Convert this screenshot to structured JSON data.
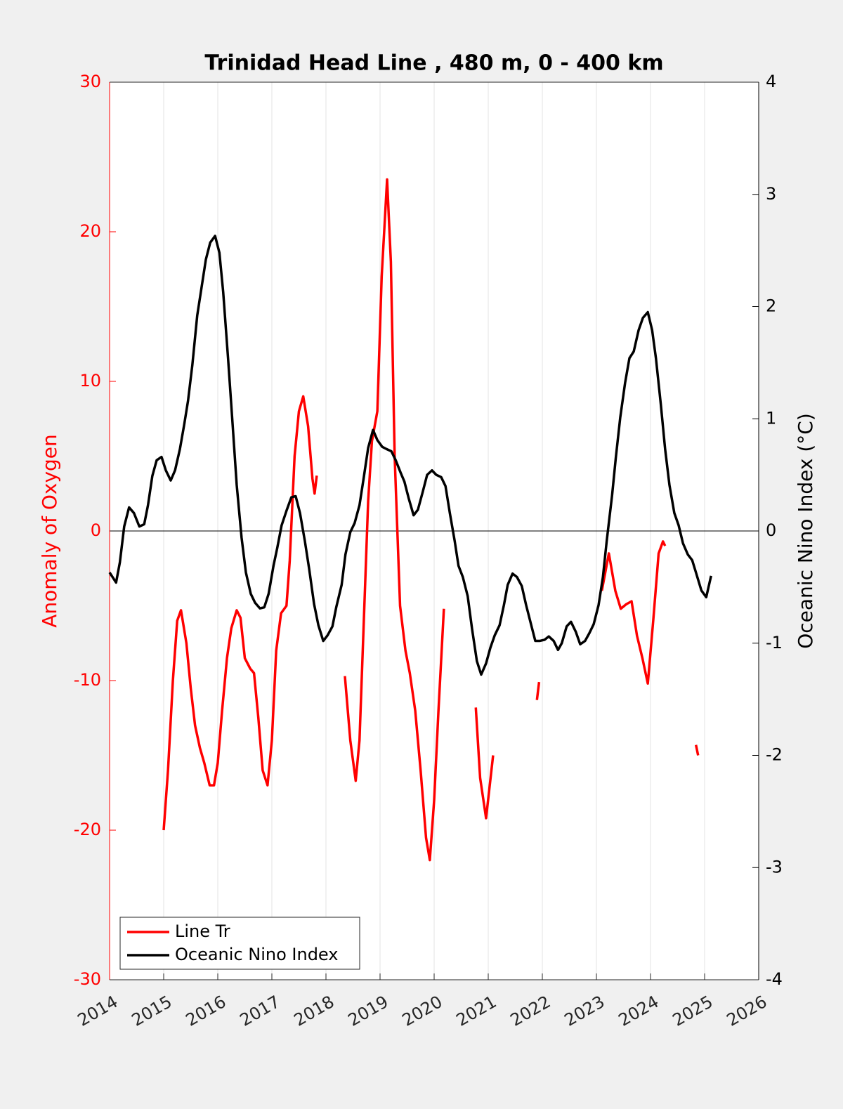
{
  "chart_data": {
    "type": "line",
    "title": "Trinidad Head Line , 480 m, 0 - 400 km",
    "ylabel": "Anomaly of Oxygen",
    "y2label": "Oceanic Nino Index (°C)",
    "xlim": [
      2014,
      2026
    ],
    "xticks": [
      2014,
      2015,
      2016,
      2017,
      2018,
      2019,
      2020,
      2021,
      2022,
      2023,
      2024,
      2025,
      2026
    ],
    "ylim": [
      -30,
      30
    ],
    "yticks": [
      -30,
      -20,
      -10,
      0,
      10,
      20,
      30
    ],
    "y2lim": [
      -4,
      4
    ],
    "y2ticks": [
      -4,
      -3,
      -2,
      -1,
      0,
      1,
      2,
      3,
      4
    ],
    "grid": "x",
    "hline": 0,
    "legend": "lower left",
    "series": [
      {
        "name": "Line Tr",
        "color": "#ff0000",
        "axis": "y",
        "x": [
          2015.0,
          2015.08,
          2015.17,
          2015.25,
          2015.32,
          2015.42,
          2015.5,
          2015.58,
          2015.67,
          2015.75,
          2015.85,
          2015.93,
          2016.0,
          2016.08,
          2016.17,
          2016.25,
          2016.35,
          2016.42,
          2016.5,
          2016.6,
          2016.67,
          2016.75,
          2016.83,
          2016.92,
          2017.0,
          2017.08,
          2017.17,
          2017.27,
          2017.33,
          2017.42,
          2017.5,
          2017.58,
          2017.67,
          2017.75,
          2017.79,
          2017.83,
          null,
          2018.35,
          2018.45,
          2018.55,
          2018.62,
          2018.7,
          2018.78,
          2018.85,
          2018.95,
          2019.03,
          2019.13,
          2019.2,
          2019.27,
          2019.37,
          2019.47,
          2019.55,
          2019.65,
          2019.75,
          2019.85,
          2019.92,
          2020.0,
          2020.08,
          2020.18,
          null,
          2020.77,
          2020.85,
          2020.96,
          2021.09,
          null,
          2021.9,
          2021.94,
          null,
          2023.1,
          2023.23,
          2023.35,
          2023.45,
          2023.55,
          2023.65,
          2023.75,
          2023.85,
          2023.95,
          2024.05,
          2024.15,
          2024.23,
          2024.27,
          null,
          2024.84,
          2024.88
        ],
        "values": [
          -20,
          -16,
          -10,
          -6,
          -5.3,
          -7.5,
          -10.5,
          -13,
          -14.5,
          -15.5,
          -17,
          -17,
          -15.5,
          -12,
          -8.5,
          -6.5,
          -5.3,
          -5.8,
          -8.5,
          -9.2,
          -9.5,
          -12.5,
          -16,
          -17,
          -14,
          -8,
          -5.5,
          -5,
          -2,
          5,
          8,
          9,
          7,
          3.5,
          2.5,
          3.7,
          null,
          -9.7,
          -14,
          -16.7,
          -14,
          -6,
          2,
          6,
          8,
          17,
          23.5,
          18,
          5,
          -5,
          -8,
          -9.5,
          -12,
          -16,
          -20.5,
          -22,
          -18,
          -12,
          -5.2,
          null,
          -11.8,
          -16.5,
          -19.2,
          -15,
          null,
          -11.3,
          -10.1,
          null,
          -4,
          -1.5,
          -4,
          -5.2,
          -4.9,
          -4.7,
          -7,
          -8.5,
          -10.2,
          -6,
          -1.5,
          -0.7,
          -1,
          null,
          -14.3,
          -15
        ]
      },
      {
        "name": "Oceanic Nino Index",
        "color": "#000000",
        "axis": "y2",
        "x": [
          2014.0,
          2014.12,
          2014.19,
          2014.27,
          2014.36,
          2014.45,
          2014.55,
          2014.64,
          2014.71,
          2014.79,
          2014.87,
          2014.96,
          2015.04,
          2015.13,
          2015.21,
          2015.3,
          2015.38,
          2015.45,
          2015.53,
          2015.62,
          2015.7,
          2015.78,
          2015.86,
          2015.95,
          2016.03,
          2016.1,
          2016.19,
          2016.27,
          2016.35,
          2016.44,
          2016.52,
          2016.61,
          2016.69,
          2016.78,
          2016.86,
          2016.94,
          2017.03,
          2017.1,
          2017.18,
          2017.27,
          2017.36,
          2017.44,
          2017.52,
          2017.61,
          2017.69,
          2017.78,
          2017.86,
          2017.95,
          2018.03,
          2018.12,
          2018.19,
          2018.29,
          2018.36,
          2018.45,
          2018.53,
          2018.62,
          2018.7,
          2018.78,
          2018.87,
          2018.95,
          2019.04,
          2019.12,
          2019.21,
          2019.29,
          2019.38,
          2019.45,
          2019.53,
          2019.62,
          2019.7,
          2019.79,
          2019.87,
          2019.96,
          2020.04,
          2020.13,
          2020.21,
          2020.29,
          2020.38,
          2020.45,
          2020.53,
          2020.62,
          2020.7,
          2020.79,
          2020.87,
          2020.96,
          2021.04,
          2021.12,
          2021.21,
          2021.29,
          2021.36,
          2021.45,
          2021.53,
          2021.62,
          2021.7,
          2021.79,
          2021.87,
          2021.95,
          2022.04,
          2022.12,
          2022.21,
          2022.29,
          2022.36,
          2022.45,
          2022.53,
          2022.62,
          2022.7,
          2022.79,
          2022.87,
          2022.95,
          2023.04,
          2023.12,
          2023.19,
          2023.29,
          2023.36,
          2023.44,
          2023.53,
          2023.61,
          2023.69,
          2023.78,
          2023.86,
          2023.95,
          2024.03,
          2024.1,
          2024.19,
          2024.27,
          2024.35,
          2024.44,
          2024.52,
          2024.6,
          2024.69,
          2024.77,
          2024.84,
          2024.94,
          2025.03,
          2025.12
        ],
        "values": [
          -0.37,
          -0.46,
          -0.28,
          0.04,
          0.21,
          0.16,
          0.04,
          0.06,
          0.23,
          0.49,
          0.63,
          0.66,
          0.54,
          0.45,
          0.54,
          0.73,
          0.95,
          1.16,
          1.48,
          1.92,
          2.17,
          2.42,
          2.57,
          2.63,
          2.48,
          2.13,
          1.54,
          0.98,
          0.41,
          -0.06,
          -0.37,
          -0.56,
          -0.64,
          -0.69,
          -0.68,
          -0.56,
          -0.31,
          -0.15,
          0.05,
          0.18,
          0.3,
          0.31,
          0.16,
          -0.09,
          -0.34,
          -0.65,
          -0.84,
          -0.98,
          -0.93,
          -0.85,
          -0.68,
          -0.48,
          -0.21,
          -0.01,
          0.07,
          0.23,
          0.48,
          0.74,
          0.9,
          0.81,
          0.75,
          0.73,
          0.71,
          0.63,
          0.52,
          0.44,
          0.29,
          0.14,
          0.19,
          0.35,
          0.5,
          0.54,
          0.5,
          0.48,
          0.4,
          0.16,
          -0.09,
          -0.31,
          -0.41,
          -0.58,
          -0.87,
          -1.16,
          -1.28,
          -1.18,
          -1.04,
          -0.93,
          -0.84,
          -0.66,
          -0.48,
          -0.38,
          -0.41,
          -0.49,
          -0.66,
          -0.83,
          -0.98,
          -0.98,
          -0.97,
          -0.94,
          -0.98,
          -1.06,
          -1.0,
          -0.85,
          -0.81,
          -0.9,
          -1.01,
          -0.98,
          -0.91,
          -0.83,
          -0.66,
          -0.41,
          -0.09,
          0.32,
          0.66,
          1.01,
          1.32,
          1.54,
          1.6,
          1.79,
          1.9,
          1.95,
          1.79,
          1.54,
          1.13,
          0.73,
          0.41,
          0.16,
          0.05,
          -0.11,
          -0.21,
          -0.26,
          -0.37,
          -0.53,
          -0.59,
          -0.4
        ]
      }
    ]
  }
}
